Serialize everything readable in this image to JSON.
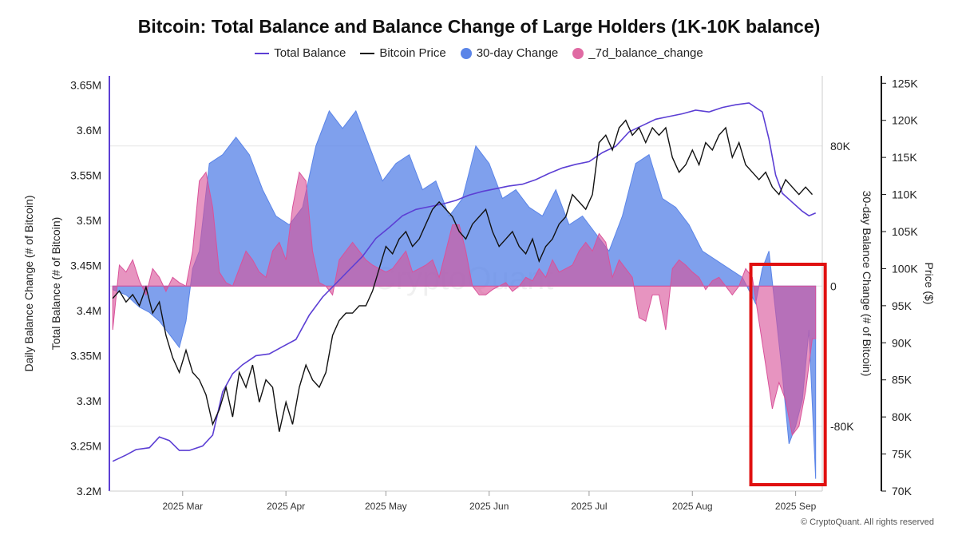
{
  "chart_data": {
    "type": "line",
    "title": "Bitcoin: Total Balance and Balance Change of Large Holders (1K-10K balance)",
    "legend": [
      {
        "label": "Total Balance",
        "color": "#5c3fd4",
        "kind": "line"
      },
      {
        "label": "Bitcoin Price",
        "color": "#111111",
        "kind": "line"
      },
      {
        "label": "30-day Change",
        "color": "#5b85e8",
        "kind": "area"
      },
      {
        "label": "_7d_balance_change",
        "color": "#e06aa3",
        "kind": "area"
      }
    ],
    "left_axis_outer_label": "Daily Balance Change (# of Bitcoin)",
    "left_axis_inner_label": "Total Balance (# of Bitcoin)",
    "right_axis_inner_label": "30-day Balance Change (# of Bitcoin)",
    "right_axis_outer_label": "Price ($)",
    "x_tick_labels": [
      "2025 Mar",
      "2025 Apr",
      "2025 May",
      "2025 Jun",
      "2025 Jul",
      "2025 Aug",
      "2025 Sep"
    ],
    "x_tick_positions": [
      10,
      41,
      71,
      102,
      132,
      163,
      194
    ],
    "x_range": [
      -12,
      202
    ],
    "balance_axis": {
      "ticks": [
        "3.2M",
        "3.25M",
        "3.3M",
        "3.35M",
        "3.4M",
        "3.45M",
        "3.5M",
        "3.55M",
        "3.6M",
        "3.65M"
      ],
      "tick_values": [
        3.2,
        3.25,
        3.3,
        3.35,
        3.4,
        3.45,
        3.5,
        3.55,
        3.6,
        3.65
      ],
      "range": [
        3.2,
        3.66
      ]
    },
    "change_axis": {
      "ticks": [
        "80K",
        "0",
        "-80K"
      ],
      "tick_values": [
        80000,
        0,
        -80000
      ],
      "range": [
        -117000,
        120000
      ]
    },
    "price_axis": {
      "ticks": [
        "70K",
        "75K",
        "80K",
        "85K",
        "90K",
        "95K",
        "100K",
        "105K",
        "110K",
        "115K",
        "120K",
        "125K"
      ],
      "tick_values": [
        70,
        75,
        80,
        85,
        90,
        95,
        100,
        105,
        110,
        115,
        120,
        125
      ],
      "range": [
        70,
        126
      ]
    },
    "series": {
      "total_balance": {
        "name": "Total Balance",
        "unit": "M BTC",
        "x": [
          -11,
          -7,
          -4,
          0,
          3,
          6,
          9,
          12,
          16,
          19,
          22,
          25,
          28,
          32,
          36,
          40,
          44,
          48,
          52,
          56,
          60,
          64,
          68,
          72,
          76,
          80,
          84,
          88,
          92,
          96,
          100,
          104,
          108,
          112,
          116,
          120,
          124,
          128,
          132,
          136,
          140,
          144,
          148,
          152,
          156,
          160,
          164,
          168,
          172,
          176,
          180,
          184,
          186,
          188,
          190,
          193,
          196,
          198,
          200
        ],
        "values": [
          3.233,
          3.24,
          3.246,
          3.248,
          3.26,
          3.256,
          3.245,
          3.245,
          3.25,
          3.262,
          3.31,
          3.33,
          3.34,
          3.35,
          3.352,
          3.36,
          3.368,
          3.395,
          3.415,
          3.43,
          3.445,
          3.46,
          3.48,
          3.492,
          3.505,
          3.512,
          3.515,
          3.518,
          3.522,
          3.528,
          3.532,
          3.535,
          3.538,
          3.54,
          3.545,
          3.552,
          3.558,
          3.562,
          3.565,
          3.575,
          3.582,
          3.598,
          3.605,
          3.612,
          3.615,
          3.618,
          3.622,
          3.62,
          3.625,
          3.628,
          3.63,
          3.62,
          3.59,
          3.55,
          3.53,
          3.52,
          3.51,
          3.505,
          3.508
        ]
      },
      "bitcoin_price": {
        "name": "Bitcoin Price",
        "unit": "K USD",
        "x": [
          -11,
          -9,
          -7,
          -5,
          -3,
          -1,
          1,
          3,
          5,
          7,
          9,
          11,
          13,
          15,
          17,
          19,
          21,
          23,
          25,
          27,
          29,
          31,
          33,
          35,
          37,
          39,
          41,
          43,
          45,
          47,
          49,
          51,
          53,
          55,
          57,
          59,
          61,
          63,
          65,
          67,
          69,
          71,
          73,
          75,
          77,
          79,
          81,
          83,
          85,
          87,
          89,
          91,
          93,
          95,
          97,
          99,
          101,
          103,
          105,
          107,
          109,
          111,
          113,
          115,
          117,
          119,
          121,
          123,
          125,
          127,
          129,
          131,
          133,
          135,
          137,
          139,
          141,
          143,
          145,
          147,
          149,
          151,
          153,
          155,
          157,
          159,
          161,
          163,
          165,
          167,
          169,
          171,
          173,
          175,
          177,
          179,
          181,
          183,
          185,
          187,
          189,
          191,
          193,
          195,
          197,
          199
        ],
        "values": [
          96,
          97,
          95.5,
          96.5,
          95,
          97.5,
          94,
          95.5,
          91,
          88,
          86,
          89,
          86,
          85,
          83,
          79,
          81,
          84,
          80,
          86,
          84,
          87,
          82,
          85,
          84,
          78,
          82,
          79,
          84,
          87,
          85,
          84,
          86,
          91,
          93,
          94,
          94,
          95,
          95,
          97,
          100,
          103,
          102,
          104,
          105,
          103,
          104,
          106,
          108,
          109,
          108,
          107,
          105,
          104,
          106,
          107,
          108,
          105,
          103,
          104,
          105,
          103,
          102,
          104,
          101,
          103,
          104,
          106,
          107,
          110,
          109,
          108,
          110,
          117,
          118,
          116,
          119,
          120,
          118,
          119,
          117,
          119,
          118,
          119,
          115,
          113,
          114,
          116,
          114,
          117,
          116,
          118,
          119,
          115,
          117,
          114,
          113,
          112,
          113,
          111,
          110,
          112,
          111,
          110,
          111,
          110
        ]
      },
      "change_30d": {
        "name": "30-day Change",
        "unit": "BTC",
        "x": [
          -11,
          -7,
          -3,
          0,
          3,
          5,
          7,
          9,
          11,
          13,
          15,
          18,
          22,
          26,
          30,
          34,
          38,
          42,
          46,
          50,
          54,
          58,
          62,
          66,
          70,
          74,
          78,
          82,
          86,
          90,
          94,
          98,
          102,
          106,
          110,
          114,
          118,
          122,
          126,
          130,
          134,
          138,
          142,
          146,
          150,
          154,
          158,
          162,
          166,
          170,
          174,
          178,
          182,
          184,
          186,
          188,
          190,
          192,
          194,
          196,
          198,
          200
        ],
        "values": [
          -2000,
          -5000,
          -12000,
          -15000,
          -20000,
          -25000,
          -30000,
          -35000,
          -20000,
          10000,
          20000,
          70000,
          75000,
          85000,
          75000,
          55000,
          40000,
          35000,
          45000,
          80000,
          100000,
          90000,
          100000,
          80000,
          60000,
          70000,
          75000,
          55000,
          60000,
          40000,
          50000,
          80000,
          70000,
          50000,
          55000,
          45000,
          40000,
          55000,
          35000,
          40000,
          30000,
          20000,
          40000,
          70000,
          75000,
          50000,
          45000,
          35000,
          20000,
          15000,
          10000,
          5000,
          -10000,
          10000,
          20000,
          -15000,
          -50000,
          -90000,
          -80000,
          -65000,
          -25000,
          -110000
        ]
      },
      "change_7d": {
        "name": "_7d_balance_change",
        "unit": "BTC",
        "x": [
          -11,
          -9,
          -7,
          -5,
          -3,
          -1,
          1,
          3,
          5,
          7,
          9,
          11,
          13,
          15,
          17,
          19,
          21,
          23,
          25,
          27,
          29,
          31,
          33,
          35,
          37,
          39,
          41,
          43,
          45,
          47,
          49,
          51,
          53,
          55,
          57,
          59,
          61,
          63,
          65,
          67,
          69,
          71,
          73,
          75,
          77,
          79,
          81,
          83,
          85,
          87,
          89,
          91,
          93,
          95,
          97,
          99,
          101,
          103,
          105,
          107,
          109,
          111,
          113,
          115,
          117,
          119,
          121,
          123,
          125,
          127,
          129,
          131,
          133,
          135,
          137,
          139,
          141,
          143,
          145,
          147,
          149,
          151,
          153,
          155,
          157,
          159,
          161,
          163,
          165,
          167,
          169,
          171,
          173,
          175,
          177,
          179,
          181,
          183,
          185,
          187,
          189,
          191,
          193,
          195,
          197,
          199,
          200
        ],
        "values": [
          -25000,
          12000,
          8000,
          15000,
          3000,
          -5000,
          10000,
          5000,
          -3000,
          5000,
          2000,
          0,
          20000,
          60000,
          65000,
          45000,
          8000,
          2000,
          0,
          10000,
          20000,
          15000,
          8000,
          5000,
          20000,
          25000,
          15000,
          45000,
          65000,
          60000,
          20000,
          2000,
          0,
          -5000,
          15000,
          20000,
          25000,
          20000,
          15000,
          12000,
          10000,
          8000,
          10000,
          15000,
          20000,
          8000,
          10000,
          12000,
          15000,
          5000,
          20000,
          35000,
          35000,
          20000,
          0,
          -5000,
          -5000,
          -2000,
          0,
          2000,
          -3000,
          0,
          5000,
          3000,
          10000,
          5000,
          15000,
          8000,
          10000,
          12000,
          20000,
          25000,
          20000,
          30000,
          25000,
          5000,
          15000,
          10000,
          5000,
          -18000,
          -20000,
          -5000,
          -5000,
          -25000,
          10000,
          15000,
          12000,
          8000,
          5000,
          -2000,
          3000,
          5000,
          0,
          -5000,
          0,
          10000,
          5000,
          -20000,
          -45000,
          -70000,
          -55000,
          -65000,
          -85000,
          -80000,
          -60000,
          -30000,
          -30000
        ]
      }
    },
    "highlight_box": {
      "x_range": [
        182,
        200
      ],
      "color": "#e01010"
    }
  },
  "footer": "© CryptoQuant. All rights reserved",
  "watermark": "CryptoQuant"
}
